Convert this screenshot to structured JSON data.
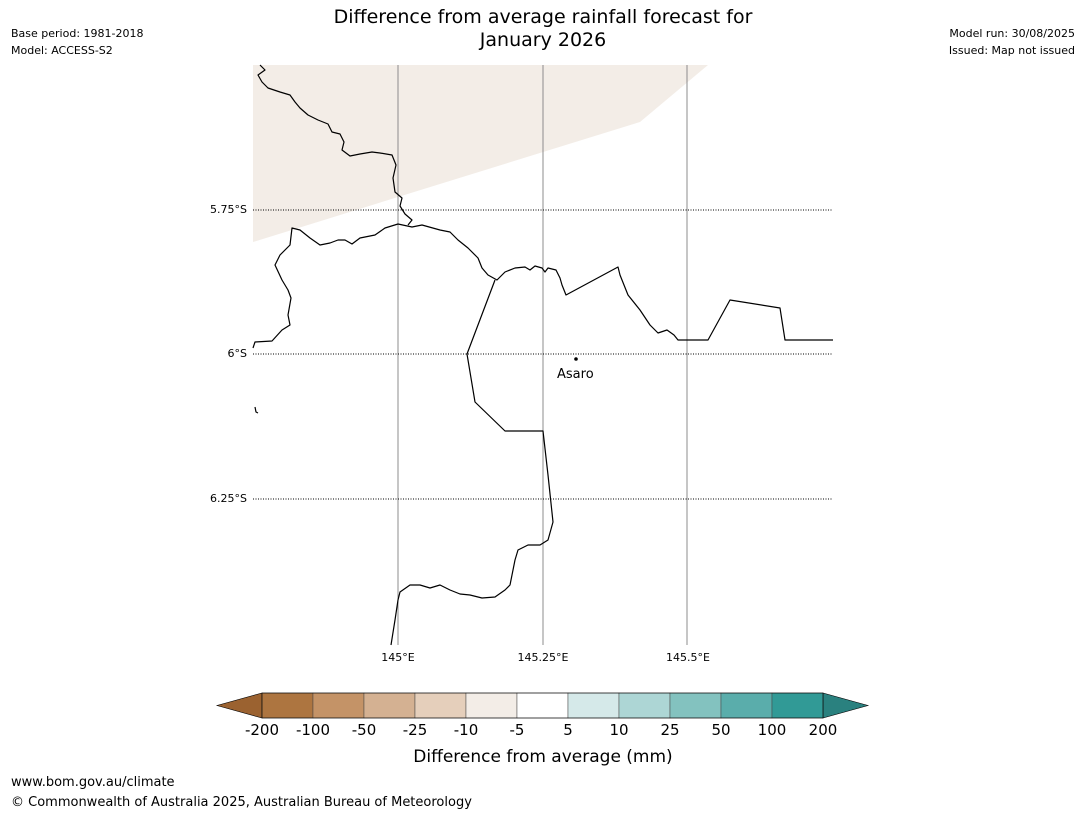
{
  "header": {
    "title_line1": "Difference from average rainfall forecast for",
    "title_line2": "January 2026",
    "base_period": "Base period: 1981-2018",
    "model": "Model: ACCESS-S2",
    "model_run": "Model run: 30/08/2025",
    "issued": "Issued: Map not issued"
  },
  "map": {
    "lat_labels": [
      "5.75°S",
      "6°S",
      "6.25°S"
    ],
    "lon_labels": [
      "145°E",
      "145.25°E",
      "145.5°E"
    ],
    "place": {
      "name": "Asaro"
    },
    "shaded_category": "-10 to -5",
    "shaded_color": "#f3ede7"
  },
  "colorbar": {
    "ticks": [
      "-200",
      "-100",
      "-50",
      "-25",
      "-10",
      "-5",
      "5",
      "10",
      "25",
      "50",
      "100",
      "200"
    ],
    "colors": [
      "#ad7540",
      "#c49367",
      "#d4b192",
      "#e5cfbb",
      "#f3ede7",
      "#ffffff",
      "#d5e9e9",
      "#add6d5",
      "#83c2bf",
      "#5aadab",
      "#319a96"
    ],
    "extend_low_color": "#9b6230",
    "extend_high_color": "#2a817f",
    "label": "Difference from average (mm)"
  },
  "footer": {
    "url": "www.bom.gov.au/climate",
    "copyright": "© Commonwealth of Australia 2025, Australian Bureau of Meteorology"
  }
}
